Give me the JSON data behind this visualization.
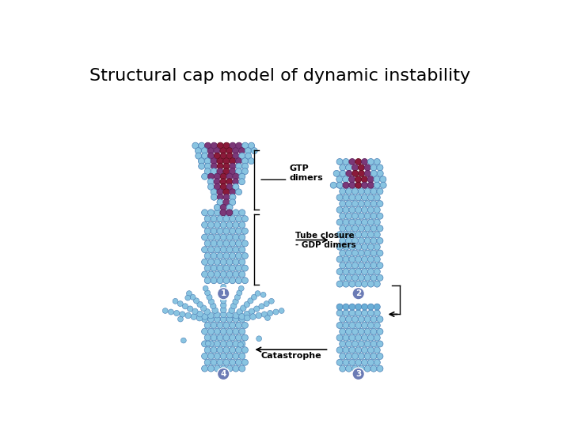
{
  "title": "Structural cap model of dynamic instability",
  "title_fontsize": 16,
  "background_color": "#ffffff",
  "colors": {
    "light_blue": "#89C4E1",
    "med_blue": "#6AAED6",
    "dark_blue": "#4A7FB5",
    "purple": "#7B3878",
    "dark_crimson": "#8B1A3A",
    "number_bg": "#6B7BB5",
    "number_text": "#ffffff"
  },
  "labels": {
    "gtp_dimers": "GTP\ndimers",
    "tube_closure": "Tube closure",
    "gdp_dimers": "- GDP dimers",
    "catastrophe": "Catastrophe",
    "num1": "1",
    "num2": "2",
    "num3": "3",
    "num4": "4"
  }
}
